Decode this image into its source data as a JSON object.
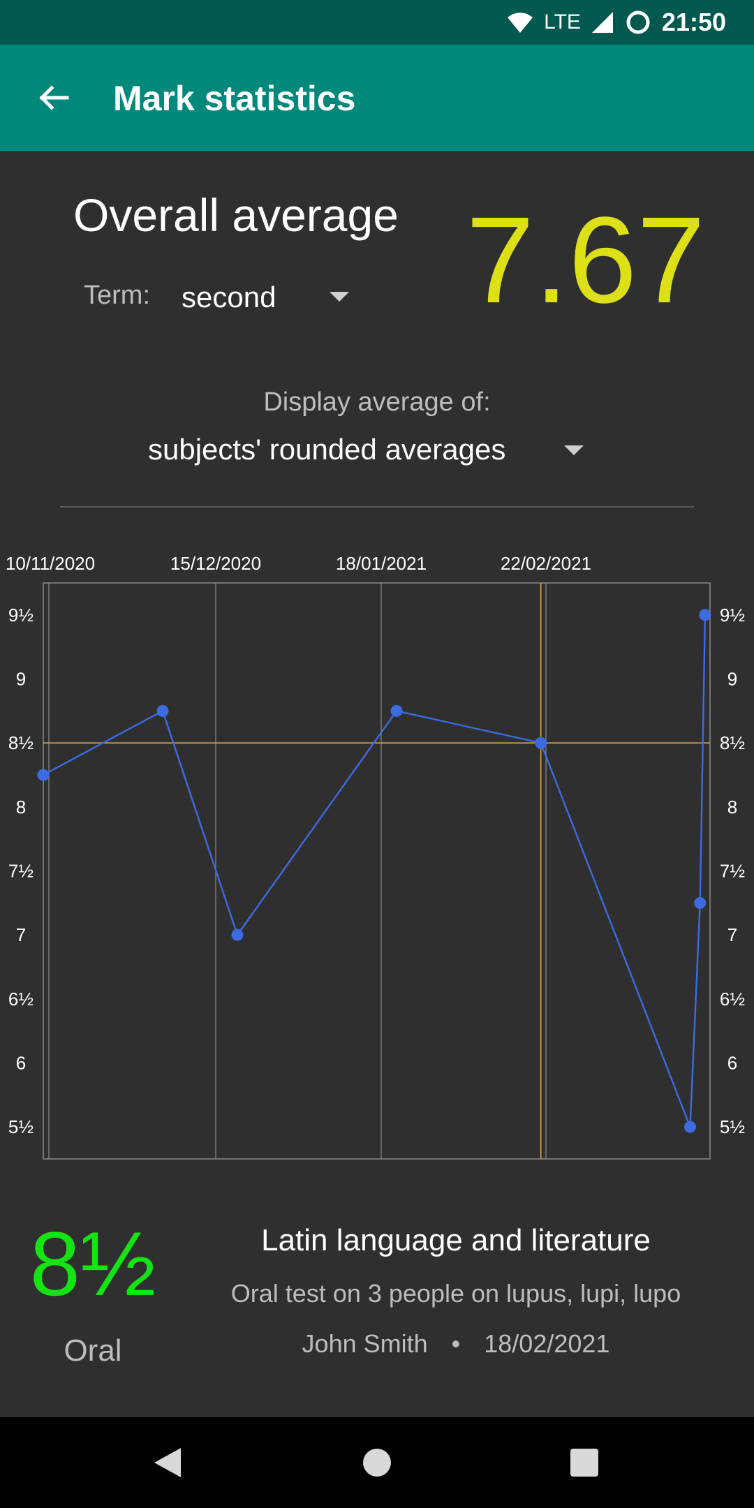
{
  "status_bar": {
    "network": "LTE",
    "time": "21:50"
  },
  "app_bar": {
    "title": "Mark statistics",
    "back_icon": "arrow-back-icon"
  },
  "overall": {
    "title": "Overall average",
    "value": "7.67",
    "value_color": "#dde017",
    "term_label": "Term:",
    "term_value": "second"
  },
  "average_of": {
    "label": "Display average of:",
    "value": "subjects' rounded averages"
  },
  "chart_data": {
    "type": "line",
    "x_tick_labels": [
      "10/11/2020",
      "15/12/2020",
      "18/01/2021",
      "22/02/2021"
    ],
    "y_tick_labels": [
      "9½",
      "9",
      "8½",
      "8",
      "7½",
      "7",
      "6½",
      "6",
      "5½"
    ],
    "y_tick_values": [
      9.5,
      9,
      8.5,
      8,
      7.5,
      7,
      6.5,
      6,
      5.5
    ],
    "ylim": [
      5.25,
      9.75
    ],
    "series": [
      {
        "color": "#3d6be0",
        "x": [
          "2020-11-10",
          "2020-12-04",
          "2020-12-19",
          "2021-01-20",
          "2021-02-18",
          "2021-03-20",
          "2021-03-22",
          "2021-03-23"
        ],
        "y": [
          8.25,
          8.75,
          7,
          8.75,
          8.5,
          5.5,
          7.25,
          9.5
        ]
      }
    ],
    "highlight": {
      "x": "2021-02-18",
      "y": 8.5,
      "color": "#d9a44f"
    },
    "grid": true
  },
  "selected_mark": {
    "mark": "8½",
    "mark_color": "#14e314",
    "type": "Oral",
    "subject": "Latin language and literature",
    "description": "Oral test on 3 people on lupus, lupi, lupo",
    "teacher": "John Smith",
    "separator": "•",
    "date": "18/02/2021"
  },
  "nav_bar": {
    "back": "nav-back-icon",
    "home": "nav-home-icon",
    "recents": "nav-recents-icon"
  }
}
